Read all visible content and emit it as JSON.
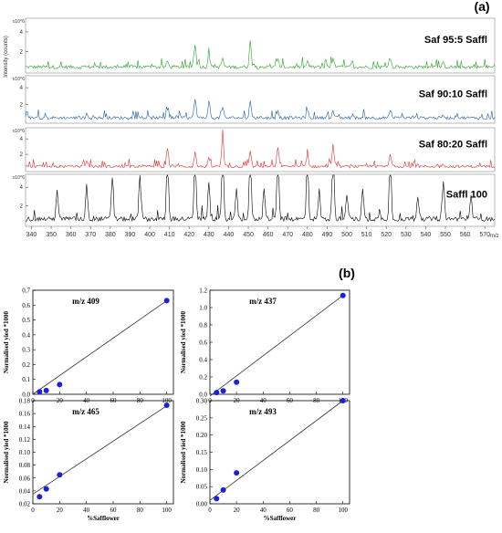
{
  "figure": {
    "label_a": "(a)",
    "label_b": "(b)"
  },
  "spectra": {
    "ylabel": "Intensity (counts)",
    "xlabel": "m/z",
    "exponent": "x10^6",
    "x_ticks": [
      340,
      350,
      360,
      370,
      380,
      390,
      400,
      410,
      420,
      430,
      440,
      450,
      460,
      470,
      480,
      490,
      500,
      510,
      520,
      530,
      540,
      550,
      560,
      570
    ],
    "xlim": [
      337,
      575
    ],
    "panels": [
      {
        "name": "Saf 95:5 Saffl",
        "color": "#2ca02c",
        "y_ticks": [
          2,
          4
        ],
        "ylim": [
          0,
          5.2
        ],
        "scale": 0.75,
        "peaks": [
          [
            423,
            2.4
          ],
          [
            430,
            1.3
          ],
          [
            437,
            0.9
          ],
          [
            451,
            2.6
          ],
          [
            409,
            0.6
          ],
          [
            465,
            0.8
          ],
          [
            480,
            0.6
          ],
          [
            493,
            0.8
          ],
          [
            522,
            0.8
          ],
          [
            549,
            0.4
          ]
        ]
      },
      {
        "name": "Saf 90:10 Saffl",
        "color": "#1f5fa8",
        "y_ticks": [
          2,
          4
        ],
        "ylim": [
          0,
          5.2
        ],
        "scale": 0.8,
        "peaks": [
          [
            423,
            2.4
          ],
          [
            430,
            1.9
          ],
          [
            437,
            1.3
          ],
          [
            451,
            2.0
          ],
          [
            409,
            1.0
          ],
          [
            465,
            0.9
          ],
          [
            480,
            1.0
          ],
          [
            493,
            0.8
          ],
          [
            522,
            0.7
          ],
          [
            368,
            0.4
          ],
          [
            549,
            0.3
          ]
        ]
      },
      {
        "name": "Saf 80:20 Saffl",
        "color": "#e03030",
        "y_ticks": [
          2,
          4
        ],
        "ylim": [
          0,
          5.2
        ],
        "scale": 1.0,
        "peaks": [
          [
            437,
            4.0
          ],
          [
            409,
            2.5
          ],
          [
            465,
            2.6
          ],
          [
            493,
            2.8
          ],
          [
            423,
            1.9
          ],
          [
            451,
            2.0
          ],
          [
            480,
            1.7
          ],
          [
            522,
            1.6
          ],
          [
            430,
            1.0
          ],
          [
            368,
            0.6
          ],
          [
            549,
            0.4
          ]
        ]
      },
      {
        "name": "Saffl 100",
        "color": "#000000",
        "y_ticks": [
          2,
          4
        ],
        "ylim": [
          0,
          5.2
        ],
        "scale": 1.2,
        "peaks": [
          [
            409,
            5.2
          ],
          [
            423,
            5.2
          ],
          [
            437,
            5.2
          ],
          [
            451,
            5.0
          ],
          [
            465,
            5.2
          ],
          [
            480,
            4.8
          ],
          [
            493,
            5.2
          ],
          [
            522,
            5.2
          ],
          [
            395,
            3.5
          ],
          [
            381,
            3.2
          ],
          [
            368,
            2.7
          ],
          [
            353,
            2.3
          ],
          [
            508,
            2.4
          ],
          [
            549,
            3.0
          ],
          [
            563,
            1.7
          ],
          [
            430,
            2.8
          ],
          [
            444,
            2.5
          ],
          [
            458,
            2.4
          ],
          [
            486,
            2.2
          ],
          [
            500,
            2.0
          ],
          [
            536,
            1.8
          ]
        ]
      }
    ]
  },
  "chart_data": [
    {
      "type": "scatter",
      "title": "m/z 409",
      "xlabel": "",
      "ylabel": "Normalised yied *1000",
      "x": [
        5,
        10,
        20,
        100
      ],
      "y": [
        0.017,
        0.025,
        0.065,
        0.63
      ],
      "fit": [
        [
          0,
          0.0
        ],
        [
          100,
          0.63
        ]
      ],
      "xlim": [
        0,
        105
      ],
      "ylim": [
        0,
        0.7
      ],
      "x_ticks": [
        0,
        20,
        40,
        60,
        80,
        100
      ],
      "y_ticks": [
        0.0,
        0.1,
        0.2,
        0.3,
        0.4,
        0.5,
        0.6,
        0.7
      ],
      "y_tick_labels": [
        "0.0",
        "0.1",
        "0.2",
        "0.3",
        "0.4",
        "0.5",
        "0.6",
        "0.7"
      ]
    },
    {
      "type": "scatter",
      "title": "m/z 437",
      "xlabel": "",
      "ylabel": "Normalised yied *1000",
      "x": [
        5,
        10,
        20,
        100
      ],
      "y": [
        0.02,
        0.04,
        0.14,
        1.14
      ],
      "fit": [
        [
          0,
          -0.02
        ],
        [
          100,
          1.14
        ]
      ],
      "xlim": [
        0,
        105
      ],
      "ylim": [
        0,
        1.2
      ],
      "x_ticks": [
        0,
        20,
        40,
        60,
        80,
        100
      ],
      "y_ticks": [
        0.0,
        0.2,
        0.4,
        0.6,
        0.8,
        1.0,
        1.2
      ],
      "y_tick_labels": [
        "0.0",
        "0.2",
        "0.4",
        "0.6",
        "0.8",
        "1.0",
        "1.2"
      ]
    },
    {
      "type": "scatter",
      "title": "m/z 465",
      "xlabel": "%Safflower",
      "ylabel": "Normalised yied *1000",
      "x": [
        5,
        10,
        20,
        100
      ],
      "y": [
        0.031,
        0.043,
        0.065,
        0.173
      ],
      "fit": [
        [
          0,
          0.035
        ],
        [
          100,
          0.172
        ]
      ],
      "xlim": [
        0,
        105
      ],
      "ylim": [
        0.02,
        0.18
      ],
      "x_ticks": [
        0,
        20,
        40,
        60,
        80,
        100
      ],
      "y_ticks": [
        0.02,
        0.04,
        0.06,
        0.08,
        0.1,
        0.12,
        0.14,
        0.16,
        0.18
      ],
      "y_tick_labels": [
        "0.02",
        "0.04",
        "0.06",
        "0.08",
        "0.10",
        "0.12",
        "0.14",
        "0.16",
        "0.18"
      ]
    },
    {
      "type": "scatter",
      "title": "m/z 493",
      "xlabel": "%Safflower",
      "ylabel": "Normalised yied *1000",
      "x": [
        5,
        10,
        20,
        100
      ],
      "y": [
        0.015,
        0.04,
        0.09,
        0.3
      ],
      "fit": [
        [
          0,
          0.01
        ],
        [
          100,
          0.3
        ]
      ],
      "xlim": [
        0,
        105
      ],
      "ylim": [
        0,
        0.3
      ],
      "x_ticks": [
        0,
        20,
        40,
        60,
        80,
        100
      ],
      "y_ticks": [
        0.0,
        0.05,
        0.1,
        0.15,
        0.2,
        0.25,
        0.3
      ],
      "y_tick_labels": [
        "0.00",
        "0.05",
        "0.10",
        "0.15",
        "0.20",
        "0.25",
        "0.30"
      ]
    }
  ]
}
